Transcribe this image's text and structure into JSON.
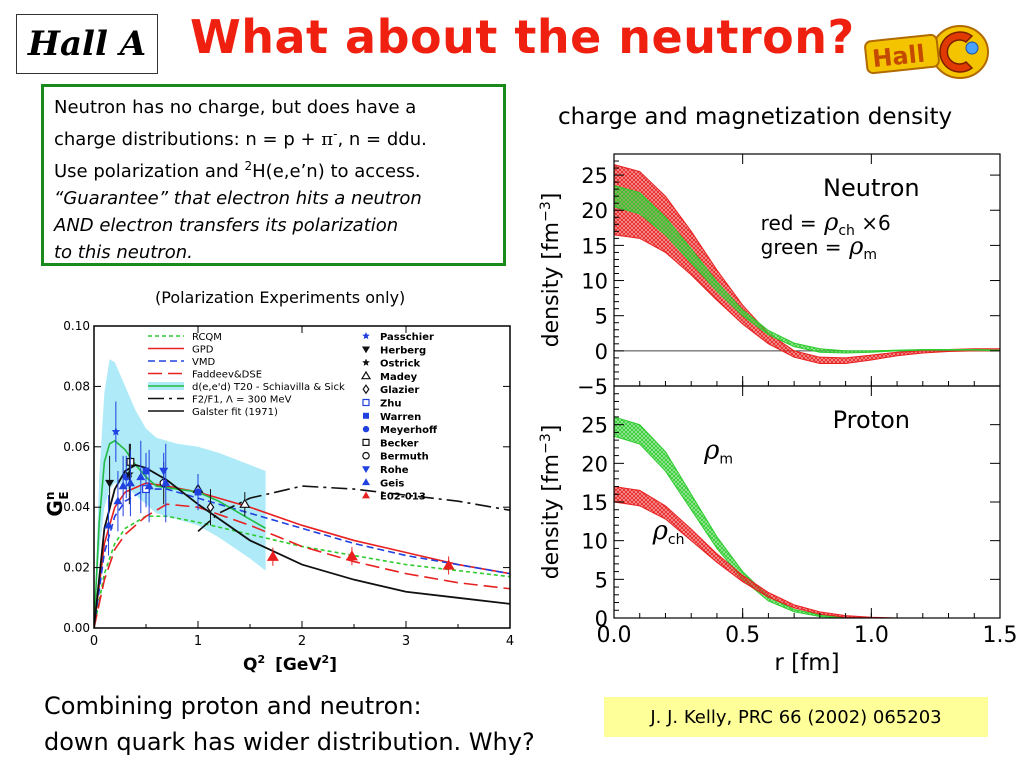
{
  "slide": {
    "hall_a_label": "Hall A",
    "title": "What about the neutron?",
    "hallc_logo_text": "Hall C",
    "text_box": {
      "line1": "Neutron has no charge, but does have a",
      "line2_pre": "charge distributions: n = p + ",
      "line2_pi": "π",
      "line2_sup": "-",
      "line2_post": ", n = ddu.",
      "line3_pre": "Use polarization and ",
      "line3_sup": "2",
      "line3_post": "H(e,e’n) to access.",
      "line4": "“Guarantee” that electron hits a neutron",
      "line5": "AND electron transfers its polarization",
      "line6": "to this neutron."
    },
    "density_subtitle": "charge and magnetization density",
    "pol_caption": "(Polarization Experiments only)",
    "bottom_line1": "Combining proton and neutron:",
    "bottom_line2": "down quark has wider distribution. Why?",
    "citation": "J. J. Kelly, PRC 66 (2002) 065203"
  },
  "chart_data": [
    {
      "type": "line",
      "ylabel_main": "G",
      "ylabel_sup": "n",
      "ylabel_sub": "E",
      "xlabel_main": "Q",
      "xlabel_sup": "2",
      "xlabel_unit_pre": "[GeV",
      "xlabel_unit_sup": "2",
      "xlabel_unit_post": "]",
      "xlim": [
        0,
        4
      ],
      "ylim": [
        0,
        0.1
      ],
      "xticks": [
        "0",
        "1",
        "2",
        "3",
        "4"
      ],
      "yticks": [
        "0.00",
        "0.02",
        "0.04",
        "0.06",
        "0.08",
        "0.10"
      ],
      "legend_models": [
        {
          "name": "RCQM",
          "color": "#2ecc2e",
          "dash": "4,3"
        },
        {
          "name": "GPD",
          "color": "#e82020",
          "dash": ""
        },
        {
          "name": "VMD",
          "color": "#2040e0",
          "dash": "7,4"
        },
        {
          "name": "Faddeev&DSE",
          "color": "#e82020",
          "dash": "14,6"
        },
        {
          "name": "d(e,e'd) T20 - Schiavilla & Sick",
          "color": "#22bb44",
          "dash": "",
          "band": "#aeeaf7"
        },
        {
          "name": "F2/F1, Λ = 300 MeV",
          "color": "#111111",
          "dash": "16,5,3,5"
        },
        {
          "name": "Galster fit (1971)",
          "color": "#111111",
          "dash": ""
        }
      ],
      "legend_experiments": [
        {
          "name": "Passchier",
          "marker": "star",
          "color": "#2040e0"
        },
        {
          "name": "Herberg",
          "marker": "tri-down",
          "color": "#111111"
        },
        {
          "name": "Ostrick",
          "marker": "star",
          "color": "#111111"
        },
        {
          "name": "Madey",
          "marker": "tri-up-open",
          "color": "#111111"
        },
        {
          "name": "Glazier",
          "marker": "diamond-open",
          "color": "#111111"
        },
        {
          "name": "Zhu",
          "marker": "square-open",
          "color": "#2040e0"
        },
        {
          "name": "Warren",
          "marker": "square",
          "color": "#2040e0"
        },
        {
          "name": "Meyerhoff",
          "marker": "circle",
          "color": "#2040e0"
        },
        {
          "name": "Becker",
          "marker": "square-open",
          "color": "#111111"
        },
        {
          "name": "Bermuth",
          "marker": "circle-open",
          "color": "#111111"
        },
        {
          "name": "Rohe",
          "marker": "tri-down",
          "color": "#2040e0"
        },
        {
          "name": "Geis",
          "marker": "tri-up",
          "color": "#2040e0"
        },
        {
          "name": "E02-013",
          "marker": "tri-up",
          "color": "#e82020"
        }
      ],
      "series": [
        {
          "name": "RCQM",
          "x": [
            0,
            0.1,
            0.2,
            0.3,
            0.5,
            0.7,
            1.0,
            1.5,
            2.0,
            2.5,
            3.0,
            3.5,
            4.0
          ],
          "y": [
            0,
            0.018,
            0.028,
            0.033,
            0.037,
            0.037,
            0.035,
            0.031,
            0.027,
            0.024,
            0.021,
            0.019,
            0.017
          ]
        },
        {
          "name": "GPD",
          "x": [
            0,
            0.1,
            0.2,
            0.3,
            0.5,
            0.7,
            1.0,
            1.5,
            2.0,
            2.5,
            3.0,
            3.5,
            4.0
          ],
          "y": [
            0,
            0.028,
            0.04,
            0.045,
            0.048,
            0.047,
            0.045,
            0.04,
            0.034,
            0.029,
            0.025,
            0.021,
            0.018
          ]
        },
        {
          "name": "VMD",
          "x": [
            0,
            0.1,
            0.2,
            0.3,
            0.5,
            0.7,
            1.0,
            1.5,
            2.0,
            2.5,
            3.0,
            3.5,
            4.0
          ],
          "y": [
            0,
            0.025,
            0.037,
            0.042,
            0.046,
            0.046,
            0.043,
            0.038,
            0.033,
            0.028,
            0.024,
            0.021,
            0.018
          ]
        },
        {
          "name": "Faddeev&DSE",
          "x": [
            0,
            0.1,
            0.2,
            0.3,
            0.5,
            0.7,
            1.0,
            1.5,
            2.0,
            2.5,
            3.0,
            3.5,
            4.0
          ],
          "y": [
            0,
            0.016,
            0.026,
            0.031,
            0.037,
            0.041,
            0.04,
            0.034,
            0.027,
            0.022,
            0.018,
            0.015,
            0.013
          ]
        },
        {
          "name": "d(e,e'd) T20 - Schiavilla & Sick",
          "x": [
            0,
            0.05,
            0.1,
            0.15,
            0.2,
            0.3,
            0.4,
            0.5,
            0.6,
            0.8,
            1.0,
            1.2,
            1.5,
            1.65
          ],
          "y": [
            0,
            0.035,
            0.055,
            0.061,
            0.062,
            0.059,
            0.054,
            0.05,
            0.047,
            0.046,
            0.045,
            0.042,
            0.036,
            0.033
          ],
          "band_low": [
            0,
            0.025,
            0.04,
            0.046,
            0.048,
            0.047,
            0.044,
            0.041,
            0.038,
            0.036,
            0.034,
            0.03,
            0.023,
            0.019
          ],
          "band_high": [
            0,
            0.05,
            0.078,
            0.089,
            0.088,
            0.08,
            0.072,
            0.066,
            0.063,
            0.061,
            0.06,
            0.058,
            0.054,
            0.052
          ]
        },
        {
          "name": "F2/F1, Λ = 300 MeV",
          "x": [
            1.0,
            1.2,
            1.5,
            2.0,
            2.5,
            3.0,
            3.5,
            4.0
          ],
          "y": [
            0.032,
            0.038,
            0.043,
            0.047,
            0.046,
            0.044,
            0.042,
            0.039
          ]
        },
        {
          "name": "Galster fit (1971)",
          "x": [
            0,
            0.1,
            0.2,
            0.3,
            0.4,
            0.5,
            0.7,
            1.0,
            1.5,
            2.0,
            2.5,
            3.0,
            3.5,
            4.0
          ],
          "y": [
            0,
            0.033,
            0.046,
            0.052,
            0.054,
            0.053,
            0.049,
            0.041,
            0.029,
            0.021,
            0.016,
            0.012,
            0.01,
            0.008
          ]
        }
      ],
      "points": [
        {
          "exp": "E02-013",
          "x": 1.72,
          "y": 0.0236,
          "err": 0.003
        },
        {
          "exp": "E02-013",
          "x": 2.48,
          "y": 0.0238,
          "err": 0.003
        },
        {
          "exp": "E02-013",
          "x": 3.41,
          "y": 0.0207,
          "err": 0.003
        },
        {
          "exp": "Madey",
          "x": 1.45,
          "y": 0.041,
          "err": 0.004
        },
        {
          "exp": "Madey",
          "x": 1.0,
          "y": 0.046,
          "err": 0.005
        },
        {
          "exp": "Glazier",
          "x": 1.12,
          "y": 0.04,
          "err": 0.006
        },
        {
          "exp": "Warren",
          "x": 0.5,
          "y": 0.052,
          "err": 0.006
        },
        {
          "exp": "Warren",
          "x": 1.0,
          "y": 0.045,
          "err": 0.006
        },
        {
          "exp": "Zhu",
          "x": 0.5,
          "y": 0.046,
          "err": 0.006
        },
        {
          "exp": "Becker",
          "x": 0.35,
          "y": 0.055,
          "err": 0.006
        },
        {
          "exp": "Bermuth",
          "x": 0.67,
          "y": 0.048,
          "err": 0.007
        },
        {
          "exp": "Rohe",
          "x": 0.67,
          "y": 0.052,
          "err": 0.006
        },
        {
          "exp": "Meyerhoff",
          "x": 0.31,
          "y": 0.05,
          "err": 0.007
        },
        {
          "exp": "Passchier",
          "x": 0.21,
          "y": 0.065,
          "err": 0.01
        },
        {
          "exp": "Herberg",
          "x": 0.15,
          "y": 0.048,
          "err": 0.009
        },
        {
          "exp": "Ostrick",
          "x": 0.34,
          "y": 0.051,
          "err": 0.01
        },
        {
          "exp": "Geis",
          "x": 0.14,
          "y": 0.034,
          "err": 0.01
        },
        {
          "exp": "Geis",
          "x": 0.23,
          "y": 0.042,
          "err": 0.01
        },
        {
          "exp": "Geis",
          "x": 0.28,
          "y": 0.047,
          "err": 0.01
        },
        {
          "exp": "Geis",
          "x": 0.35,
          "y": 0.048,
          "err": 0.011
        },
        {
          "exp": "Geis",
          "x": 0.45,
          "y": 0.05,
          "err": 0.012
        },
        {
          "exp": "Geis",
          "x": 0.53,
          "y": 0.047,
          "err": 0.012
        },
        {
          "exp": "Geis",
          "x": 0.69,
          "y": 0.048,
          "err": 0.013
        }
      ]
    },
    {
      "type": "area",
      "panel_neutron": {
        "title": "Neutron",
        "legend_red": "red   =",
        "legend_red_sym": "ρ",
        "legend_red_sub": "ch",
        "legend_red_factor": "×6",
        "legend_green": "green =",
        "legend_green_sym": "ρ",
        "legend_green_sub": "m",
        "ylabel": "density  [fm",
        "ylabel_sup": "−3",
        "ylabel_post": "]",
        "ylim": [
          -5,
          28
        ],
        "yticks": [
          "25",
          "20",
          "15",
          "10",
          "5",
          "0",
          "−5"
        ]
      },
      "panel_proton": {
        "title": "Proton",
        "label_m_sym": "ρ",
        "label_m_sub": "m",
        "label_ch_sym": "ρ",
        "label_ch_sub": "ch",
        "ylabel": "density  [fm",
        "ylabel_sup": "−3",
        "ylabel_post": "]",
        "ylim": [
          0,
          30
        ],
        "yticks": [
          "25",
          "20",
          "15",
          "10",
          "5",
          "0"
        ]
      },
      "xlabel": "r     [fm]",
      "xlim": [
        0,
        1.5
      ],
      "xticks": [
        "0.0",
        "0.5",
        "1.0",
        "1.5"
      ],
      "series": [
        {
          "name": "neutron ρch ×6",
          "color": "#e82020",
          "x": [
            0,
            0.1,
            0.2,
            0.3,
            0.4,
            0.5,
            0.6,
            0.7,
            0.8,
            0.9,
            1.0,
            1.1,
            1.2,
            1.3,
            1.4,
            1.5
          ],
          "low": [
            16.5,
            16.0,
            14.0,
            10.8,
            7.2,
            3.8,
            1.0,
            -0.9,
            -1.8,
            -1.8,
            -1.3,
            -0.7,
            -0.3,
            -0.1,
            0.0,
            0.0
          ],
          "high": [
            26.5,
            25.5,
            22.0,
            17.0,
            11.5,
            6.5,
            2.5,
            0.0,
            -0.9,
            -1.0,
            -0.6,
            -0.2,
            0.0,
            0.2,
            0.3,
            0.3
          ]
        },
        {
          "name": "neutron ρm",
          "color": "#2ecc2e",
          "x": [
            0,
            0.1,
            0.2,
            0.3,
            0.4,
            0.5,
            0.6,
            0.7,
            0.8,
            0.9,
            1.0,
            1.1,
            1.2,
            1.3,
            1.4,
            1.5
          ],
          "low": [
            20.5,
            19.5,
            16.5,
            12.5,
            8.5,
            5.0,
            2.3,
            0.6,
            -0.2,
            -0.3,
            -0.2,
            0.0,
            0.1,
            0.1,
            0.1,
            0.0
          ],
          "high": [
            23.5,
            22.5,
            19.0,
            14.5,
            9.8,
            5.8,
            2.9,
            1.1,
            0.3,
            0.0,
            0.0,
            0.1,
            0.2,
            0.2,
            0.2,
            0.1
          ]
        },
        {
          "name": "proton ρm",
          "color": "#2ecc2e",
          "x": [
            0,
            0.1,
            0.2,
            0.3,
            0.4,
            0.5,
            0.6,
            0.7,
            0.8,
            0.9,
            1.0,
            1.1,
            1.2,
            1.3,
            1.4,
            1.5
          ],
          "low": [
            23.5,
            22.5,
            19.0,
            14.0,
            9.0,
            5.0,
            2.2,
            0.8,
            0.2,
            0.0,
            0.0,
            0.0,
            0.0,
            0.0,
            0.0,
            0.0
          ],
          "high": [
            26.0,
            25.0,
            21.5,
            16.0,
            10.5,
            6.0,
            2.8,
            1.1,
            0.4,
            0.1,
            0.0,
            0.0,
            0.0,
            0.0,
            0.0,
            0.0
          ]
        },
        {
          "name": "proton ρch",
          "color": "#e82020",
          "x": [
            0,
            0.1,
            0.2,
            0.3,
            0.4,
            0.5,
            0.6,
            0.7,
            0.8,
            0.9,
            1.0,
            1.1,
            1.2,
            1.3,
            1.4,
            1.5
          ],
          "low": [
            15.0,
            14.5,
            12.8,
            10.0,
            7.2,
            4.7,
            2.7,
            1.3,
            0.5,
            0.1,
            0.0,
            0.0,
            0.0,
            0.0,
            0.0,
            0.0
          ],
          "high": [
            17.0,
            16.5,
            14.5,
            11.5,
            8.3,
            5.5,
            3.3,
            1.7,
            0.8,
            0.3,
            0.1,
            0.0,
            0.0,
            0.0,
            0.0,
            0.0
          ]
        }
      ]
    }
  ]
}
